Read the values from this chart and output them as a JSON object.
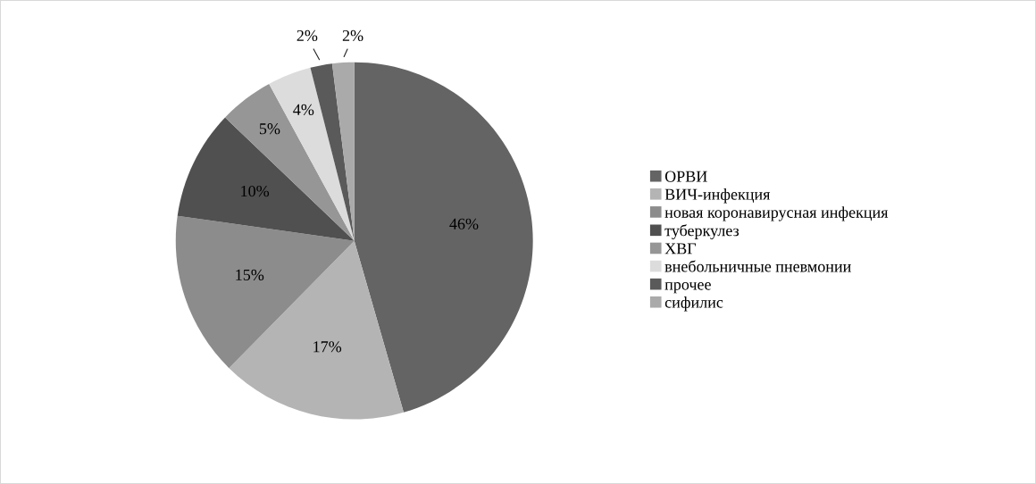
{
  "chart_data": {
    "type": "pie",
    "categories": [
      "ОРВИ",
      "ВИЧ-инфекция",
      "новая коронавирусная инфекция",
      "туберкулез",
      "ХВГ",
      "внебольничные пневмонии",
      "прочее",
      "сифилис"
    ],
    "values": [
      46,
      17,
      15,
      10,
      5,
      4,
      2,
      2
    ],
    "colors": [
      "#646464",
      "#b4b4b4",
      "#8c8c8c",
      "#505050",
      "#969696",
      "#dcdcdc",
      "#5a5a5a",
      "#aaaaaa"
    ],
    "value_labels": [
      "46%",
      "17%",
      "15%",
      "10%",
      "5%",
      "4%",
      "2%",
      "2%"
    ],
    "legend": "right"
  }
}
